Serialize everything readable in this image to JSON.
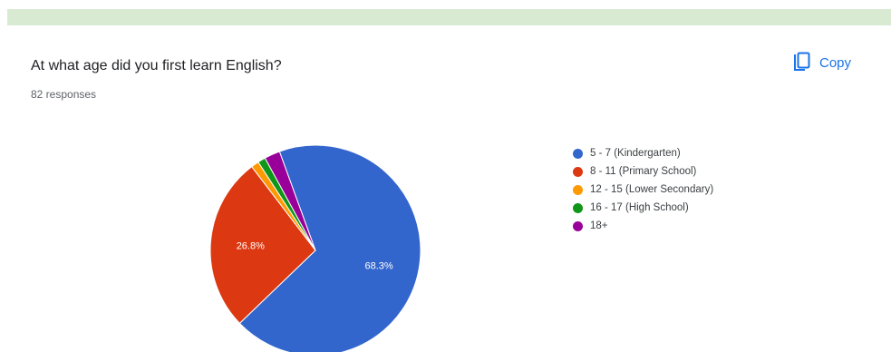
{
  "question": {
    "title": "At what age did you first learn English?",
    "responses": "82 responses"
  },
  "toolbar": {
    "copy_label": "Copy",
    "copy_icon": "copy-icon",
    "accent": "#1a73e8"
  },
  "chart_data": {
    "type": "pie",
    "categories": [
      "5 - 7 (Kindergarten)",
      "8 - 11 (Primary School)",
      "12 - 15 (Lower Secondary)",
      "16 - 17 (High School)",
      "18+"
    ],
    "values": [
      68.3,
      26.8,
      1.2,
      1.2,
      2.4
    ],
    "labels": [
      "68.3%",
      "26.8%",
      "",
      "",
      ""
    ],
    "colors": [
      "#3366cc",
      "#dc3912",
      "#ff9900",
      "#109618",
      "#990099"
    ],
    "legend_position": "right"
  }
}
